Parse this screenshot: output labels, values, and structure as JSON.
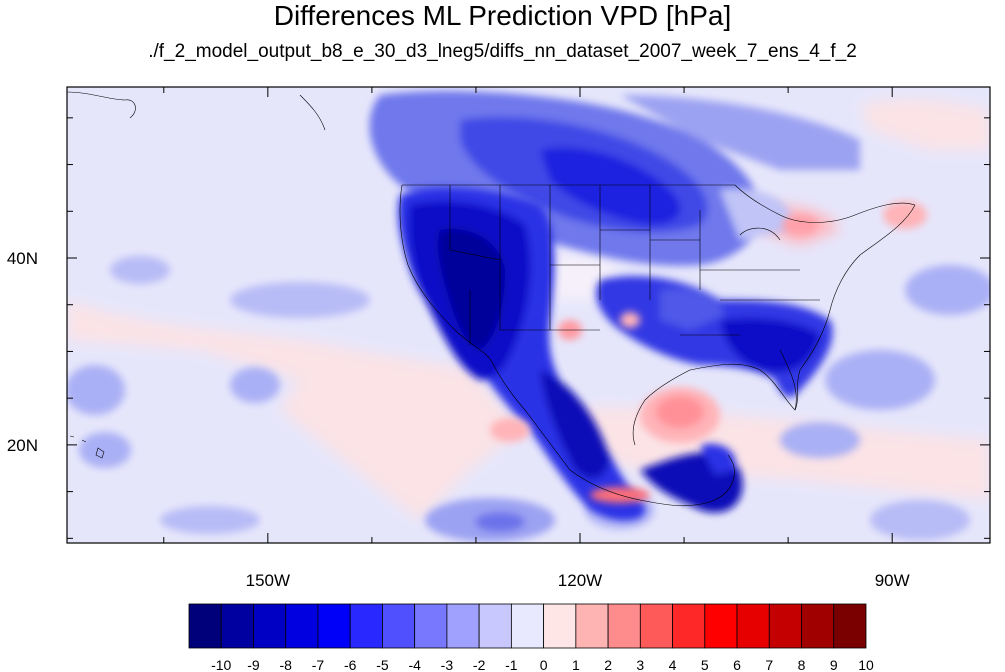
{
  "title": "Differences ML Prediction VPD [hPa]",
  "subtitle": "./f_2_model_output_b8_e_30_d3_lneg5/diffs_nn_dataset_2007_week_7_ens_4_f_2",
  "map": {
    "lon_range": [
      -169.3,
      -80.6
    ],
    "lat_range": [
      9.5,
      58.3
    ],
    "lon_labels": [
      "150W",
      "120W",
      "90W"
    ],
    "lat_labels": [
      "40N",
      "20N"
    ],
    "colorbar_labels": [
      "-10",
      "-9",
      "-8",
      "-7",
      "-6",
      "-5",
      "-4",
      "-3",
      "-2",
      "-1",
      "0",
      "1",
      "2",
      "3",
      "4",
      "5",
      "6",
      "7",
      "8",
      "9",
      "10"
    ],
    "colorbar_colors": [
      "#00007a",
      "#0000a0",
      "#0000c4",
      "#0000e0",
      "#0000f8",
      "#2828ff",
      "#5050ff",
      "#7878ff",
      "#a0a0ff",
      "#c8c8ff",
      "#e8e8ff",
      "#ffe6e6",
      "#ffb4b4",
      "#ff8c8c",
      "#ff5a5a",
      "#ff2828",
      "#ff0000",
      "#e60000",
      "#c40000",
      "#a00000",
      "#7a0000"
    ],
    "background_color": "#e6e6fb"
  }
}
